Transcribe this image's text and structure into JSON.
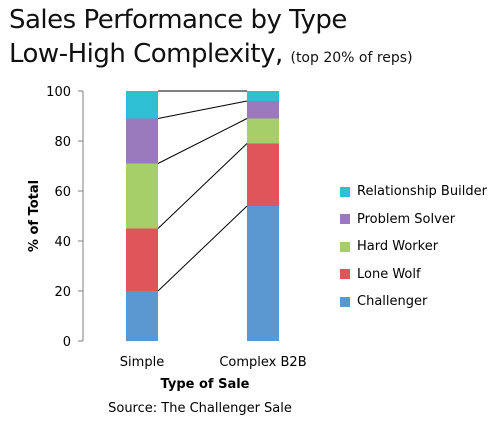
{
  "chart_data": {
    "type": "bar",
    "stacked": true,
    "title": "Sales Performance by Type",
    "title_line2": "Low-High Complexity,",
    "subtitle": "(top 20% of reps)",
    "xlabel": "Type of Sale",
    "ylabel": "% of Total",
    "ylim": [
      0,
      100
    ],
    "yticks": [
      0,
      20,
      40,
      60,
      80,
      100
    ],
    "categories": [
      "Simple",
      "Complex B2B"
    ],
    "series": [
      {
        "name": "Challenger",
        "color": "#5b97d0",
        "values": [
          20,
          54
        ]
      },
      {
        "name": "Lone Wolf",
        "color": "#e0555a",
        "values": [
          25,
          25
        ]
      },
      {
        "name": "Hard Worker",
        "color": "#a6cf6a",
        "values": [
          26,
          10
        ]
      },
      {
        "name": "Problem Solver",
        "color": "#9b79bd",
        "values": [
          18,
          7
        ]
      },
      {
        "name": "Relationship Builder",
        "color": "#2fbfd4",
        "values": [
          11,
          4
        ]
      }
    ],
    "legend_position": "right",
    "grid": false,
    "connector_lines": true,
    "source": "Source: The  Challenger Sale"
  }
}
